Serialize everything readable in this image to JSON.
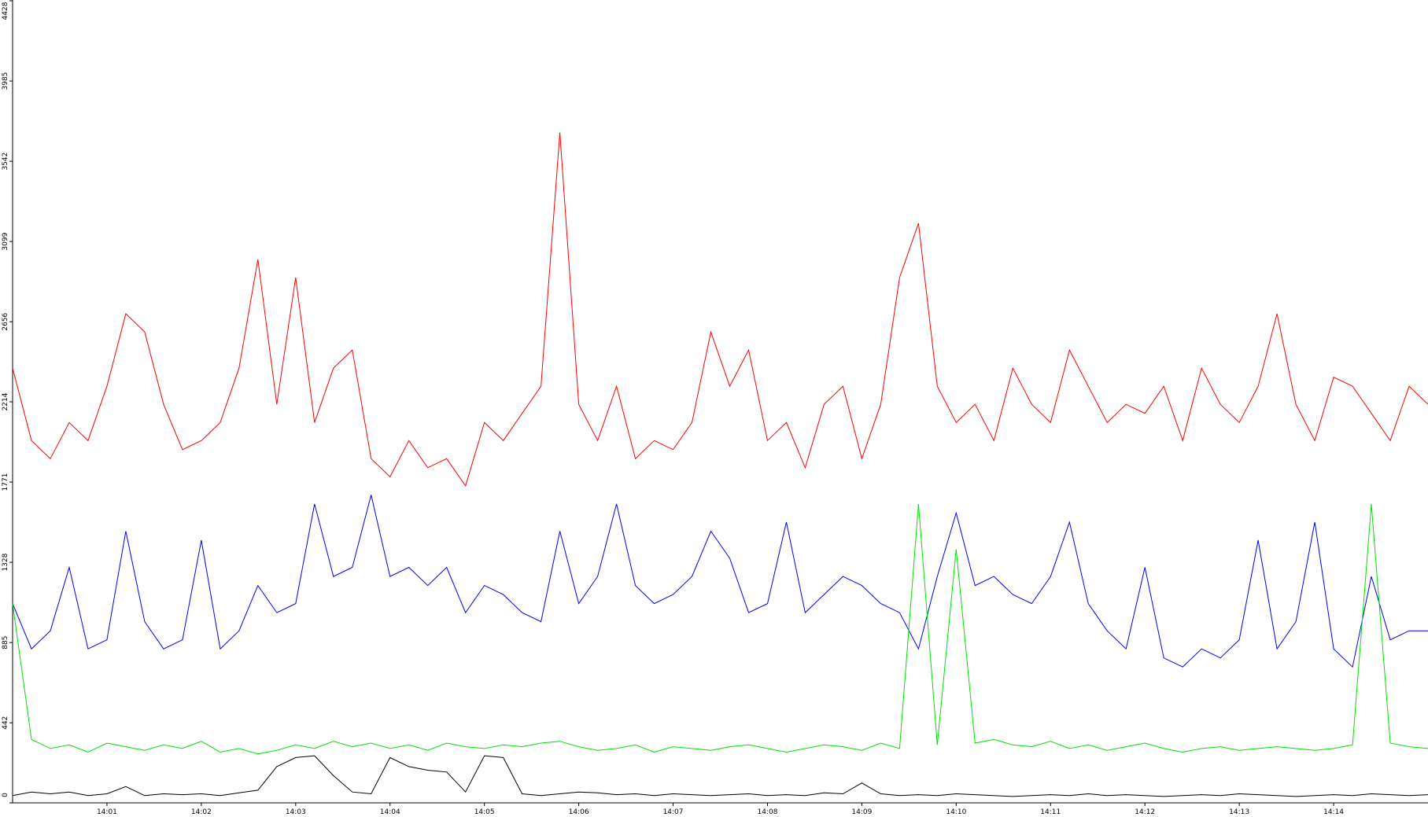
{
  "chart_data": {
    "type": "line",
    "x": [
      0,
      0.2,
      0.4,
      0.6,
      0.8,
      1,
      1.2,
      1.4,
      1.6,
      1.8,
      2,
      2.2,
      2.4,
      2.6,
      2.8,
      3,
      3.2,
      3.4,
      3.6,
      3.8,
      4,
      4.2,
      4.4,
      4.6,
      4.8,
      5,
      5.2,
      5.4,
      5.6,
      5.8,
      6,
      6.2,
      6.4,
      6.6,
      6.8,
      7,
      7.2,
      7.4,
      7.6,
      7.8,
      8,
      8.2,
      8.4,
      8.6,
      8.8,
      9,
      9.2,
      9.4,
      9.6,
      9.8,
      10,
      10.2,
      10.4,
      10.6,
      10.8,
      11,
      11.2,
      11.4,
      11.6,
      11.8,
      12,
      12.2,
      12.4,
      12.6,
      12.8,
      13,
      13.2,
      13.4,
      13.6,
      13.8,
      14,
      14.2,
      14.4,
      14.6,
      14.8,
      15
    ],
    "series": [
      {
        "color": "#ff0000",
        "values": [
          2400,
          2000,
          1900,
          2100,
          2000,
          2300,
          2700,
          2600,
          2200,
          1950,
          2000,
          2100,
          2400,
          3000,
          2200,
          2900,
          2100,
          2400,
          2500,
          1900,
          1800,
          2000,
          1850,
          1900,
          1750,
          2100,
          2000,
          2150,
          2300,
          3700,
          2200,
          2000,
          2300,
          1900,
          2000,
          1950,
          2100,
          2600,
          2300,
          2500,
          2000,
          2100,
          1850,
          2200,
          2300,
          1900,
          2200,
          2900,
          3200,
          2300,
          2100,
          2200,
          2000,
          2400,
          2200,
          2100,
          2500,
          2300,
          2100,
          2200,
          2150,
          2300,
          2000,
          2400,
          2200,
          2100,
          2300,
          2700,
          2200,
          2000,
          2350,
          2300,
          2150,
          2000,
          2300,
          2200
        ]
      },
      {
        "color": "#0000ff",
        "values": [
          1100,
          850,
          950,
          1300,
          850,
          900,
          1500,
          1000,
          850,
          900,
          1450,
          850,
          950,
          1200,
          1050,
          1100,
          1650,
          1250,
          1300,
          1700,
          1250,
          1300,
          1200,
          1300,
          1050,
          1200,
          1150,
          1050,
          1000,
          1500,
          1100,
          1250,
          1650,
          1200,
          1100,
          1150,
          1250,
          1500,
          1350,
          1050,
          1100,
          1550,
          1050,
          1150,
          1250,
          1200,
          1100,
          1050,
          850,
          1250,
          1600,
          1200,
          1250,
          1150,
          1100,
          1250,
          1550,
          1100,
          950,
          850,
          1300,
          800,
          750,
          850,
          800,
          900,
          1450,
          850,
          1000,
          1550,
          850,
          750,
          1250,
          900,
          950,
          950
        ]
      },
      {
        "color": "#00e000",
        "values": [
          1100,
          350,
          300,
          320,
          280,
          330,
          310,
          290,
          320,
          300,
          340,
          280,
          300,
          270,
          290,
          320,
          300,
          340,
          310,
          330,
          300,
          320,
          290,
          330,
          310,
          300,
          320,
          310,
          330,
          340,
          310,
          290,
          300,
          320,
          280,
          310,
          300,
          290,
          310,
          320,
          300,
          280,
          300,
          320,
          310,
          290,
          330,
          300,
          1650,
          320,
          1400,
          330,
          350,
          320,
          310,
          340,
          300,
          320,
          290,
          310,
          330,
          300,
          280,
          300,
          310,
          290,
          300,
          310,
          300,
          290,
          300,
          320,
          1650,
          330,
          310,
          300
        ]
      },
      {
        "color": "#000000",
        "values": [
          40,
          60,
          50,
          60,
          40,
          50,
          90,
          40,
          50,
          45,
          50,
          40,
          55,
          70,
          200,
          250,
          260,
          150,
          60,
          50,
          250,
          200,
          180,
          170,
          60,
          260,
          250,
          50,
          40,
          50,
          60,
          55,
          45,
          50,
          40,
          50,
          45,
          40,
          45,
          50,
          40,
          45,
          40,
          55,
          50,
          110,
          50,
          40,
          45,
          40,
          50,
          45,
          40,
          35,
          40,
          45,
          40,
          50,
          40,
          45,
          40,
          35,
          40,
          45,
          40,
          50,
          45,
          40,
          35,
          40,
          45,
          40,
          50,
          45,
          40,
          45
        ]
      }
    ],
    "xlim": [
      0,
      15
    ],
    "xticks": [
      {
        "value": 1,
        "label": "14:01"
      },
      {
        "value": 2,
        "label": "14:02"
      },
      {
        "value": 3,
        "label": "14:03"
      },
      {
        "value": 4,
        "label": "14:04"
      },
      {
        "value": 5,
        "label": "14:05"
      },
      {
        "value": 6,
        "label": "14:06"
      },
      {
        "value": 7,
        "label": "14:07"
      },
      {
        "value": 8,
        "label": "14:08"
      },
      {
        "value": 9,
        "label": "14:09"
      },
      {
        "value": 10,
        "label": "14:10"
      },
      {
        "value": 11,
        "label": "14:11"
      },
      {
        "value": 12,
        "label": "14:12"
      },
      {
        "value": 13,
        "label": "14:13"
      },
      {
        "value": 14,
        "label": "14:14"
      }
    ],
    "ylim": [
      0,
      4428
    ],
    "yticks": [
      0,
      442,
      885,
      1328,
      1771,
      2214,
      2656,
      3099,
      3542,
      3985,
      4428
    ]
  }
}
